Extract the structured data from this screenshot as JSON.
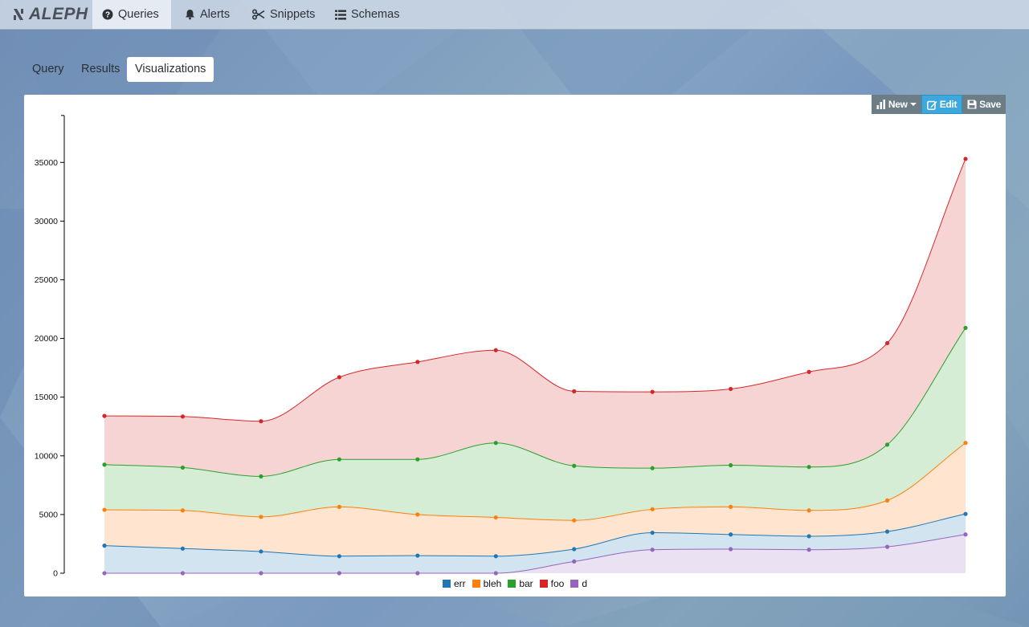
{
  "app": {
    "brand": "ALEPH"
  },
  "nav": {
    "items": [
      {
        "label": "Queries",
        "icon": "question-circle-icon",
        "active": true
      },
      {
        "label": "Alerts",
        "icon": "bell-icon",
        "active": false
      },
      {
        "label": "Snippets",
        "icon": "scissors-icon",
        "active": false
      },
      {
        "label": "Schemas",
        "icon": "list-icon",
        "active": false
      }
    ]
  },
  "tabs": [
    {
      "label": "Query",
      "active": false
    },
    {
      "label": "Results",
      "active": false
    },
    {
      "label": "Visualizations",
      "active": true
    }
  ],
  "toolbar": {
    "new_label": "New",
    "edit_label": "Edit",
    "save_label": "Save"
  },
  "colors": {
    "err": "#1f77b4",
    "bleh": "#ff7f0e",
    "bar": "#2ca02c",
    "foo": "#d62728",
    "d": "#9467bd",
    "accent": "#3ea8dc"
  },
  "chart_data": {
    "type": "area",
    "stacked": true,
    "interpolation": "smooth",
    "points_visible": true,
    "x": [
      1,
      2,
      3,
      4,
      5,
      6,
      7,
      8,
      9,
      10,
      11,
      12
    ],
    "y_ticks": [
      0,
      5000,
      10000,
      15000,
      20000,
      25000,
      30000,
      35000
    ],
    "ylim": [
      0,
      39000
    ],
    "x_axis_labels": false,
    "legend_position": "bottom-center",
    "series": [
      {
        "name": "err",
        "values": [
          2350,
          2100,
          1850,
          1450,
          1500,
          1450,
          1050,
          1450,
          1250,
          1150,
          1300,
          1750
        ]
      },
      {
        "name": "bleh",
        "values": [
          3050,
          3250,
          2950,
          4200,
          3500,
          3300,
          2450,
          2000,
          2350,
          2200,
          2650,
          6050
        ]
      },
      {
        "name": "bar",
        "values": [
          3850,
          3650,
          3450,
          4050,
          4700,
          6350,
          4650,
          3500,
          3550,
          3700,
          4750,
          9800
        ]
      },
      {
        "name": "foo",
        "values": [
          4150,
          4350,
          4700,
          7000,
          8300,
          7900,
          6350,
          6500,
          6500,
          8100,
          8650,
          14400
        ]
      },
      {
        "name": "d",
        "values": [
          0,
          0,
          0,
          0,
          0,
          0,
          1000,
          2000,
          2050,
          2000,
          2250,
          3300
        ]
      }
    ]
  }
}
